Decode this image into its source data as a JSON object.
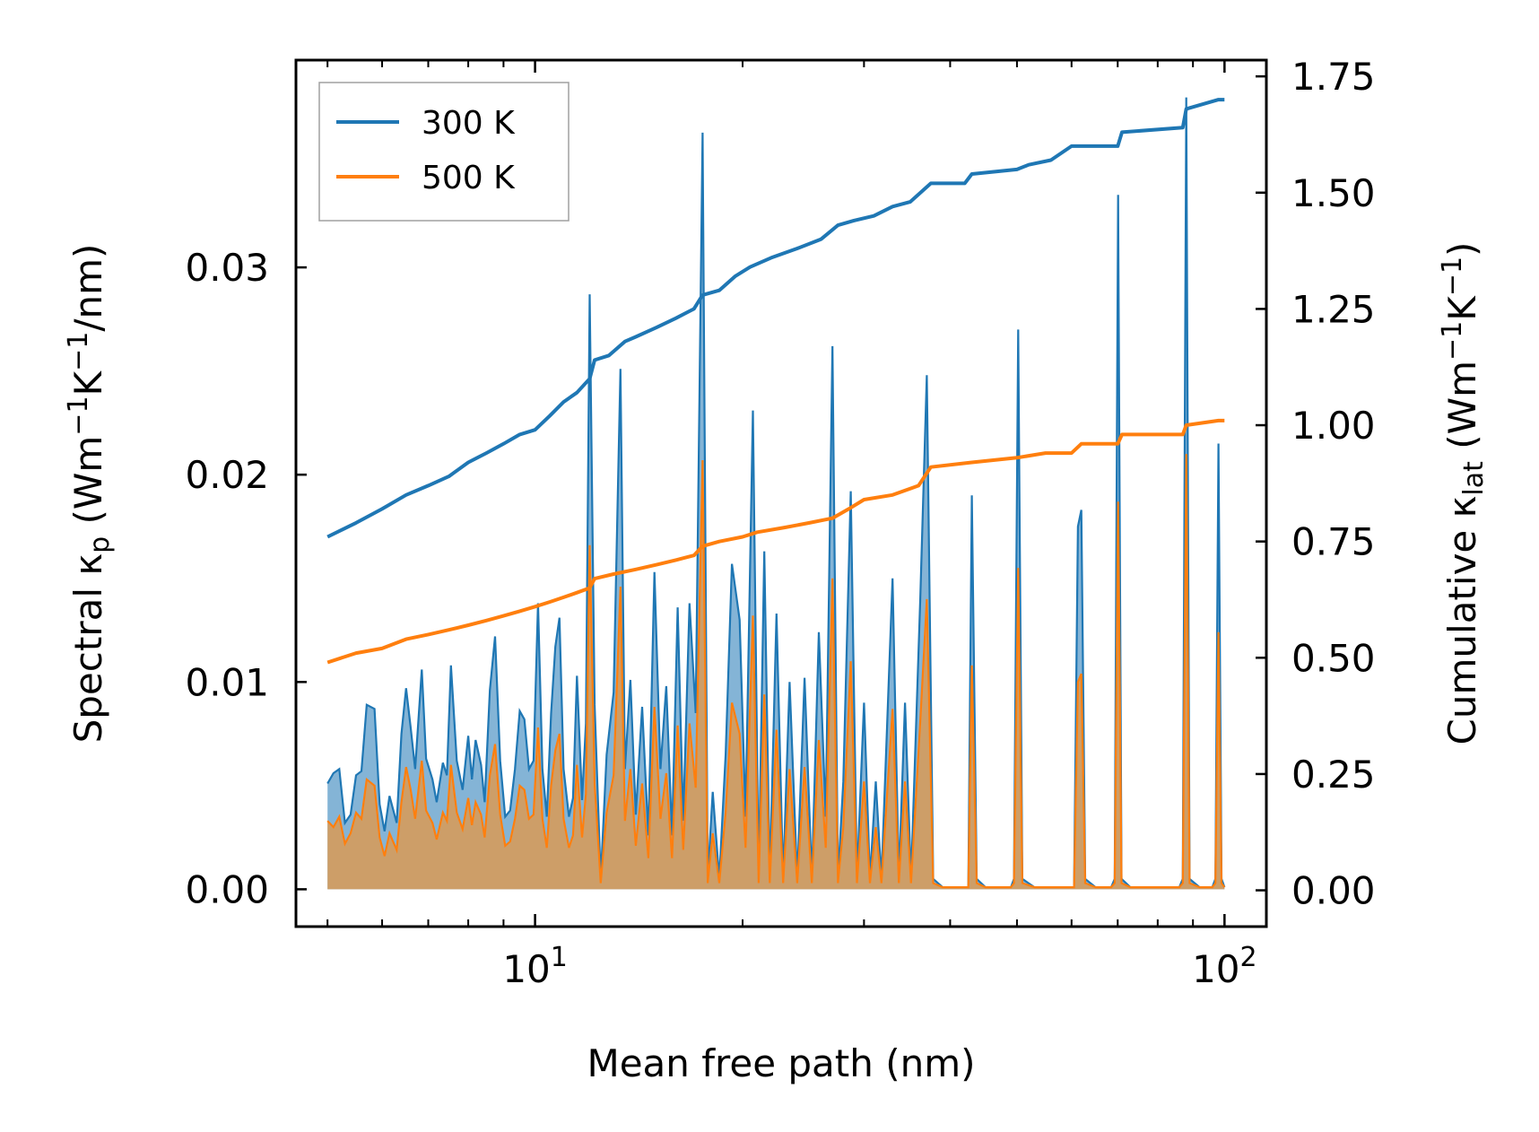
{
  "chart_data": {
    "type": "line",
    "title": "",
    "xlabel": "Mean free path (nm)",
    "xscale": "log",
    "xlim": [
      4.5,
      115
    ],
    "x_ticks": [
      {
        "value": 10,
        "base": "10",
        "exp": "1"
      },
      {
        "value": 100,
        "base": "10",
        "exp": "2"
      }
    ],
    "y_left": {
      "label_parts": {
        "pre": "Spectral κ",
        "sub": "p",
        "mid": " (Wm",
        "sup1": "−1",
        "k": "K",
        "sup2": "−1",
        "post": "/nm)"
      },
      "ylim": [
        -0.0018,
        0.04
      ],
      "ticks": [
        "0.00",
        "0.01",
        "0.02",
        "0.03"
      ]
    },
    "y_right": {
      "label_parts": {
        "pre": "Cumulative κ",
        "sub": "lat",
        "mid": " (Wm",
        "sup1": "−1",
        "k": "K",
        "sup2": "−1",
        "post": ")"
      },
      "ylim": [
        -0.078,
        1.785
      ],
      "ticks": [
        "0.00",
        "0.25",
        "0.50",
        "0.75",
        "1.00",
        "1.25",
        "1.50",
        "1.75"
      ]
    },
    "legend": {
      "position": "upper-left",
      "entries": [
        "300 K",
        "500 K"
      ]
    },
    "colors": {
      "s300": "#1f77b4",
      "s500": "#ff7f0e",
      "fill300": "#1f77b4",
      "fill500": "#d99a55"
    },
    "spectral_300K": [
      [
        5.0,
        0.0051
      ],
      [
        5.1,
        0.0056
      ],
      [
        5.2,
        0.0058
      ],
      [
        5.3,
        0.0032
      ],
      [
        5.4,
        0.0036
      ],
      [
        5.5,
        0.0055
      ],
      [
        5.6,
        0.0057
      ],
      [
        5.7,
        0.0089
      ],
      [
        5.85,
        0.0087
      ],
      [
        5.95,
        0.0041
      ],
      [
        6.05,
        0.0028
      ],
      [
        6.15,
        0.0045
      ],
      [
        6.3,
        0.0032
      ],
      [
        6.4,
        0.0075
      ],
      [
        6.5,
        0.0097
      ],
      [
        6.6,
        0.0078
      ],
      [
        6.7,
        0.0058
      ],
      [
        6.85,
        0.0106
      ],
      [
        6.95,
        0.0063
      ],
      [
        7.1,
        0.0053
      ],
      [
        7.2,
        0.0042
      ],
      [
        7.35,
        0.0061
      ],
      [
        7.45,
        0.0055
      ],
      [
        7.55,
        0.0108
      ],
      [
        7.7,
        0.0062
      ],
      [
        7.85,
        0.0048
      ],
      [
        8.0,
        0.0074
      ],
      [
        8.1,
        0.0053
      ],
      [
        8.2,
        0.0072
      ],
      [
        8.35,
        0.006
      ],
      [
        8.45,
        0.0042
      ],
      [
        8.6,
        0.0096
      ],
      [
        8.75,
        0.0122
      ],
      [
        8.9,
        0.0062
      ],
      [
        9.05,
        0.0035
      ],
      [
        9.2,
        0.0038
      ],
      [
        9.35,
        0.0058
      ],
      [
        9.5,
        0.0086
      ],
      [
        9.65,
        0.0082
      ],
      [
        9.8,
        0.0058
      ],
      [
        9.95,
        0.0062
      ],
      [
        10.1,
        0.0138
      ],
      [
        10.25,
        0.0058
      ],
      [
        10.4,
        0.0035
      ],
      [
        10.55,
        0.0085
      ],
      [
        10.7,
        0.0117
      ],
      [
        10.85,
        0.0131
      ],
      [
        11.0,
        0.0058
      ],
      [
        11.2,
        0.0035
      ],
      [
        11.35,
        0.0044
      ],
      [
        11.5,
        0.0103
      ],
      [
        11.7,
        0.0043
      ],
      [
        11.85,
        0.008
      ],
      [
        12.0,
        0.0287
      ],
      [
        12.2,
        0.0089
      ],
      [
        12.45,
        0.0005
      ],
      [
        12.7,
        0.0065
      ],
      [
        13.0,
        0.0095
      ],
      [
        13.3,
        0.0251
      ],
      [
        13.5,
        0.0058
      ],
      [
        13.75,
        0.0101
      ],
      [
        14.0,
        0.0036
      ],
      [
        14.3,
        0.0088
      ],
      [
        14.6,
        0.0026
      ],
      [
        14.9,
        0.0153
      ],
      [
        15.2,
        0.0058
      ],
      [
        15.5,
        0.0098
      ],
      [
        15.8,
        0.0026
      ],
      [
        16.1,
        0.0136
      ],
      [
        16.4,
        0.0033
      ],
      [
        16.75,
        0.0138
      ],
      [
        17.1,
        0.0085
      ],
      [
        17.5,
        0.0365
      ],
      [
        17.8,
        0.0005
      ],
      [
        18.1,
        0.0047
      ],
      [
        18.5,
        0.0005
      ],
      [
        18.9,
        0.0065
      ],
      [
        19.3,
        0.0157
      ],
      [
        19.8,
        0.013
      ],
      [
        20.2,
        0.0035
      ],
      [
        20.7,
        0.0231
      ],
      [
        21.1,
        0.0005
      ],
      [
        21.5,
        0.0163
      ],
      [
        21.9,
        0.0005
      ],
      [
        22.4,
        0.0133
      ],
      [
        22.9,
        0.0005
      ],
      [
        23.4,
        0.01
      ],
      [
        24.0,
        0.0005
      ],
      [
        24.6,
        0.0102
      ],
      [
        25.2,
        0.0005
      ],
      [
        25.8,
        0.0124
      ],
      [
        26.4,
        0.0035
      ],
      [
        27.0,
        0.0262
      ],
      [
        27.5,
        0.0005
      ],
      [
        28.0,
        0.0052
      ],
      [
        28.7,
        0.0192
      ],
      [
        29.3,
        0.0005
      ],
      [
        30.0,
        0.009
      ],
      [
        30.6,
        0.0005
      ],
      [
        31.2,
        0.0052
      ],
      [
        31.8,
        0.0005
      ],
      [
        33.0,
        0.015
      ],
      [
        33.7,
        0.0005
      ],
      [
        34.4,
        0.009
      ],
      [
        35.1,
        0.0005
      ],
      [
        36.2,
        0.014
      ],
      [
        37.0,
        0.0248
      ],
      [
        37.8,
        0.0005
      ],
      [
        39.0,
        0.0001
      ],
      [
        41.0,
        0.0001
      ],
      [
        42.5,
        0.0001
      ],
      [
        43.0,
        0.019
      ],
      [
        43.7,
        0.0005
      ],
      [
        45.0,
        0.0001
      ],
      [
        47.0,
        0.0001
      ],
      [
        49.0,
        0.0001
      ],
      [
        49.5,
        0.0005
      ],
      [
        50.2,
        0.027
      ],
      [
        50.9,
        0.0005
      ],
      [
        53.0,
        0.0001
      ],
      [
        56.0,
        0.0001
      ],
      [
        59.0,
        0.0001
      ],
      [
        60.5,
        0.0001
      ],
      [
        61.3,
        0.0175
      ],
      [
        62.0,
        0.0183
      ],
      [
        62.8,
        0.0005
      ],
      [
        65.0,
        0.0001
      ],
      [
        68.5,
        0.0001
      ],
      [
        69.3,
        0.0005
      ],
      [
        70.1,
        0.0335
      ],
      [
        70.9,
        0.0005
      ],
      [
        73.0,
        0.0001
      ],
      [
        80.0,
        0.0001
      ],
      [
        86.0,
        0.0001
      ],
      [
        87.0,
        0.0005
      ],
      [
        88.0,
        0.0382
      ],
      [
        89.0,
        0.0005
      ],
      [
        92.0,
        0.0001
      ],
      [
        96.0,
        0.0001
      ],
      [
        97.0,
        0.0005
      ],
      [
        98.0,
        0.0215
      ],
      [
        99.0,
        0.0005
      ],
      [
        100.0,
        0.0001
      ]
    ],
    "spectral_500K": [
      [
        5.0,
        0.0033
      ],
      [
        5.1,
        0.003
      ],
      [
        5.2,
        0.0035
      ],
      [
        5.3,
        0.0022
      ],
      [
        5.4,
        0.0027
      ],
      [
        5.5,
        0.0037
      ],
      [
        5.6,
        0.0034
      ],
      [
        5.7,
        0.0053
      ],
      [
        5.85,
        0.005
      ],
      [
        5.95,
        0.0025
      ],
      [
        6.05,
        0.0016
      ],
      [
        6.15,
        0.0027
      ],
      [
        6.3,
        0.0019
      ],
      [
        6.4,
        0.0042
      ],
      [
        6.5,
        0.0059
      ],
      [
        6.6,
        0.0048
      ],
      [
        6.7,
        0.0034
      ],
      [
        6.85,
        0.0062
      ],
      [
        6.95,
        0.0038
      ],
      [
        7.1,
        0.0032
      ],
      [
        7.2,
        0.0024
      ],
      [
        7.35,
        0.0037
      ],
      [
        7.45,
        0.0033
      ],
      [
        7.55,
        0.006
      ],
      [
        7.7,
        0.0037
      ],
      [
        7.85,
        0.0029
      ],
      [
        8.0,
        0.0044
      ],
      [
        8.1,
        0.0031
      ],
      [
        8.2,
        0.0042
      ],
      [
        8.35,
        0.0036
      ],
      [
        8.45,
        0.0025
      ],
      [
        8.6,
        0.0055
      ],
      [
        8.75,
        0.007
      ],
      [
        8.9,
        0.0036
      ],
      [
        9.05,
        0.0021
      ],
      [
        9.2,
        0.0023
      ],
      [
        9.35,
        0.0034
      ],
      [
        9.5,
        0.005
      ],
      [
        9.65,
        0.0048
      ],
      [
        9.8,
        0.0034
      ],
      [
        9.95,
        0.0036
      ],
      [
        10.1,
        0.0078
      ],
      [
        10.25,
        0.0034
      ],
      [
        10.4,
        0.002
      ],
      [
        10.55,
        0.005
      ],
      [
        10.7,
        0.0067
      ],
      [
        10.85,
        0.0075
      ],
      [
        11.0,
        0.0034
      ],
      [
        11.2,
        0.002
      ],
      [
        11.35,
        0.0026
      ],
      [
        11.5,
        0.006
      ],
      [
        11.7,
        0.0025
      ],
      [
        11.85,
        0.0046
      ],
      [
        12.0,
        0.0166
      ],
      [
        12.2,
        0.0051
      ],
      [
        12.45,
        0.0003
      ],
      [
        12.7,
        0.0037
      ],
      [
        13.0,
        0.0055
      ],
      [
        13.3,
        0.0146
      ],
      [
        13.5,
        0.0033
      ],
      [
        13.75,
        0.0058
      ],
      [
        14.0,
        0.0021
      ],
      [
        14.3,
        0.0051
      ],
      [
        14.6,
        0.0015
      ],
      [
        14.9,
        0.0088
      ],
      [
        15.2,
        0.0034
      ],
      [
        15.5,
        0.0056
      ],
      [
        15.8,
        0.0015
      ],
      [
        16.1,
        0.0079
      ],
      [
        16.4,
        0.0019
      ],
      [
        16.75,
        0.008
      ],
      [
        17.1,
        0.0049
      ],
      [
        17.5,
        0.0207
      ],
      [
        17.8,
        0.0003
      ],
      [
        18.1,
        0.0027
      ],
      [
        18.5,
        0.0003
      ],
      [
        18.9,
        0.0037
      ],
      [
        19.3,
        0.009
      ],
      [
        19.8,
        0.0075
      ],
      [
        20.2,
        0.002
      ],
      [
        20.7,
        0.0132
      ],
      [
        21.1,
        0.0003
      ],
      [
        21.5,
        0.0094
      ],
      [
        21.9,
        0.0003
      ],
      [
        22.4,
        0.0077
      ],
      [
        22.9,
        0.0003
      ],
      [
        23.4,
        0.0058
      ],
      [
        24.0,
        0.0003
      ],
      [
        24.6,
        0.0059
      ],
      [
        25.2,
        0.0003
      ],
      [
        25.8,
        0.0072
      ],
      [
        26.4,
        0.002
      ],
      [
        27.0,
        0.015
      ],
      [
        27.5,
        0.0003
      ],
      [
        28.0,
        0.003
      ],
      [
        28.7,
        0.011
      ],
      [
        29.3,
        0.0003
      ],
      [
        30.0,
        0.0052
      ],
      [
        30.6,
        0.0003
      ],
      [
        31.2,
        0.003
      ],
      [
        31.8,
        0.0003
      ],
      [
        33.0,
        0.0087
      ],
      [
        33.7,
        0.0003
      ],
      [
        34.4,
        0.0052
      ],
      [
        35.1,
        0.0003
      ],
      [
        36.2,
        0.0081
      ],
      [
        37.0,
        0.014
      ],
      [
        37.8,
        0.0003
      ],
      [
        39.0,
        0.0001
      ],
      [
        41.0,
        0.0001
      ],
      [
        42.5,
        0.0001
      ],
      [
        43.0,
        0.0108
      ],
      [
        43.7,
        0.0003
      ],
      [
        45.0,
        0.0001
      ],
      [
        47.0,
        0.0001
      ],
      [
        49.0,
        0.0001
      ],
      [
        49.5,
        0.0003
      ],
      [
        50.2,
        0.0155
      ],
      [
        50.9,
        0.0003
      ],
      [
        53.0,
        0.0001
      ],
      [
        56.0,
        0.0001
      ],
      [
        59.0,
        0.0001
      ],
      [
        60.5,
        0.0001
      ],
      [
        61.3,
        0.01
      ],
      [
        62.0,
        0.0104
      ],
      [
        62.8,
        0.0003
      ],
      [
        65.0,
        0.0001
      ],
      [
        68.5,
        0.0001
      ],
      [
        69.3,
        0.0003
      ],
      [
        70.1,
        0.0187
      ],
      [
        70.9,
        0.0003
      ],
      [
        73.0,
        0.0001
      ],
      [
        80.0,
        0.0001
      ],
      [
        86.0,
        0.0001
      ],
      [
        87.0,
        0.0003
      ],
      [
        88.0,
        0.021
      ],
      [
        89.0,
        0.0003
      ],
      [
        92.0,
        0.0001
      ],
      [
        96.0,
        0.0001
      ],
      [
        97.0,
        0.0003
      ],
      [
        98.0,
        0.0124
      ],
      [
        99.0,
        0.0003
      ],
      [
        100.0,
        0.0001
      ]
    ],
    "cumulative_300K": [
      [
        5.0,
        0.76
      ],
      [
        5.5,
        0.79
      ],
      [
        6.0,
        0.82
      ],
      [
        6.5,
        0.85
      ],
      [
        7.0,
        0.87
      ],
      [
        7.5,
        0.89
      ],
      [
        8.0,
        0.92
      ],
      [
        8.5,
        0.94
      ],
      [
        9.0,
        0.96
      ],
      [
        9.5,
        0.98
      ],
      [
        10.0,
        0.99
      ],
      [
        10.5,
        1.02
      ],
      [
        11.0,
        1.05
      ],
      [
        11.5,
        1.07
      ],
      [
        12.0,
        1.1
      ],
      [
        12.2,
        1.14
      ],
      [
        12.8,
        1.15
      ],
      [
        13.5,
        1.18
      ],
      [
        14.0,
        1.19
      ],
      [
        15.0,
        1.21
      ],
      [
        16.0,
        1.23
      ],
      [
        17.0,
        1.25
      ],
      [
        17.5,
        1.28
      ],
      [
        18.5,
        1.29
      ],
      [
        19.5,
        1.32
      ],
      [
        20.5,
        1.34
      ],
      [
        22.0,
        1.36
      ],
      [
        24.0,
        1.38
      ],
      [
        26.0,
        1.4
      ],
      [
        27.5,
        1.43
      ],
      [
        29.0,
        1.44
      ],
      [
        31.0,
        1.45
      ],
      [
        33.0,
        1.47
      ],
      [
        35.0,
        1.48
      ],
      [
        37.5,
        1.52
      ],
      [
        42.0,
        1.52
      ],
      [
        43.0,
        1.54
      ],
      [
        50.0,
        1.55
      ],
      [
        52.0,
        1.56
      ],
      [
        56.0,
        1.57
      ],
      [
        60.0,
        1.6
      ],
      [
        70.0,
        1.6
      ],
      [
        71.0,
        1.63
      ],
      [
        87.0,
        1.64
      ],
      [
        88.0,
        1.68
      ],
      [
        98.0,
        1.7
      ],
      [
        100.0,
        1.7
      ]
    ],
    "cumulative_500K": [
      [
        5.0,
        0.49
      ],
      [
        5.5,
        0.51
      ],
      [
        6.0,
        0.52
      ],
      [
        6.5,
        0.54
      ],
      [
        7.0,
        0.55
      ],
      [
        7.5,
        0.56
      ],
      [
        8.0,
        0.57
      ],
      [
        8.5,
        0.58
      ],
      [
        9.0,
        0.59
      ],
      [
        9.5,
        0.6
      ],
      [
        10.0,
        0.61
      ],
      [
        10.5,
        0.62
      ],
      [
        11.0,
        0.63
      ],
      [
        11.5,
        0.64
      ],
      [
        12.0,
        0.65
      ],
      [
        12.2,
        0.67
      ],
      [
        13.0,
        0.68
      ],
      [
        14.0,
        0.69
      ],
      [
        15.0,
        0.7
      ],
      [
        16.0,
        0.71
      ],
      [
        17.0,
        0.72
      ],
      [
        17.5,
        0.74
      ],
      [
        18.5,
        0.75
      ],
      [
        20.0,
        0.76
      ],
      [
        21.0,
        0.77
      ],
      [
        23.0,
        0.78
      ],
      [
        25.0,
        0.79
      ],
      [
        27.0,
        0.8
      ],
      [
        28.5,
        0.82
      ],
      [
        30.0,
        0.84
      ],
      [
        33.0,
        0.85
      ],
      [
        36.0,
        0.87
      ],
      [
        37.5,
        0.91
      ],
      [
        43.0,
        0.92
      ],
      [
        50.0,
        0.93
      ],
      [
        55.0,
        0.94
      ],
      [
        60.0,
        0.94
      ],
      [
        62.0,
        0.96
      ],
      [
        70.0,
        0.96
      ],
      [
        71.0,
        0.98
      ],
      [
        87.0,
        0.98
      ],
      [
        88.0,
        1.0
      ],
      [
        98.0,
        1.01
      ],
      [
        100.0,
        1.01
      ]
    ]
  }
}
